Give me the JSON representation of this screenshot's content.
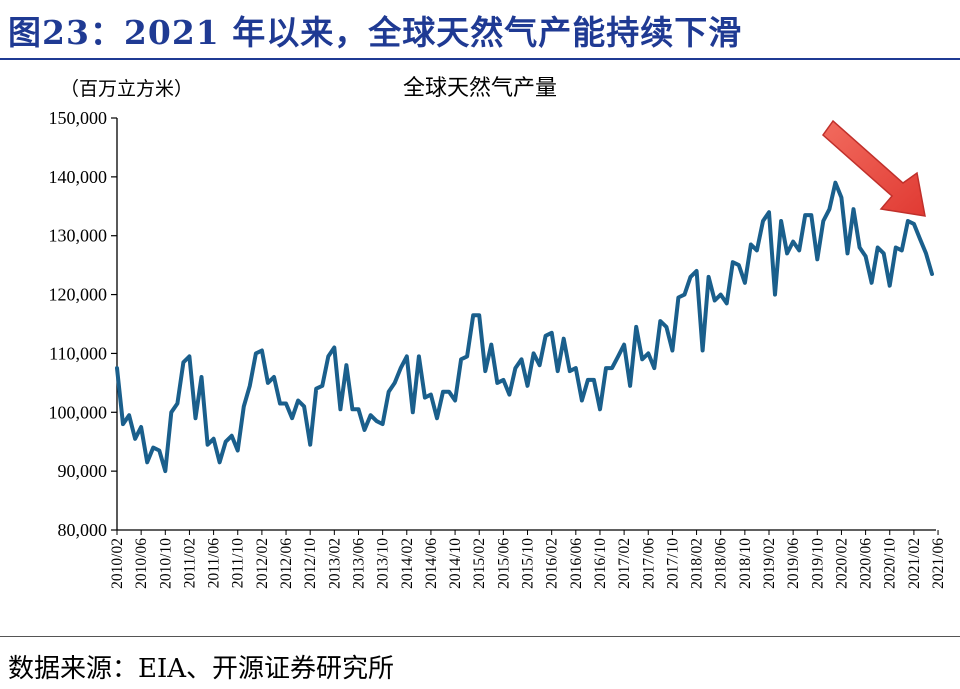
{
  "figure_title": "图23：2021 年以来，全球天然气产能持续下滑",
  "source_text": "数据来源：EIA、开源证券研究所",
  "chart_data": {
    "type": "line",
    "title": "全球天然气产量",
    "unit_label": "（百万立方米）",
    "ylim": [
      80000,
      150000
    ],
    "yticks": [
      "80,000",
      "90,000",
      "100,000",
      "110,000",
      "120,000",
      "130,000",
      "140,000",
      "150,000"
    ],
    "xtick_labels": [
      "2010/02",
      "2010/06",
      "2010/10",
      "2011/02",
      "2011/06",
      "2011/10",
      "2012/02",
      "2012/06",
      "2012/10",
      "2013/02",
      "2013/06",
      "2013/10",
      "2014/02",
      "2014/06",
      "2014/10",
      "2015/02",
      "2015/06",
      "2015/10",
      "2016/02",
      "2016/06",
      "2016/10",
      "2017/02",
      "2017/06",
      "2017/10",
      "2018/02",
      "2018/06",
      "2018/10",
      "2019/02",
      "2019/06",
      "2019/10",
      "2020/02",
      "2020/06",
      "2020/10",
      "2021/02",
      "2021/06"
    ],
    "start_month": "2010/02",
    "line_color": "#1a5f8c",
    "arrow_color": "#e8413c",
    "grid": false,
    "series": [
      {
        "values": [
          107500,
          98000,
          99500,
          95500,
          97500,
          91500,
          94000,
          93500,
          90000,
          100000,
          101500,
          108500,
          109500,
          99000,
          106000,
          94500,
          95500,
          91500,
          95000,
          96000,
          93500,
          101000,
          104500,
          110000,
          110500,
          105000,
          106000,
          101500,
          101500,
          99000,
          102000,
          101000,
          94500,
          104000,
          104500,
          109500,
          111000,
          100500,
          108000,
          100500,
          100500,
          97000,
          99500,
          98500,
          98000,
          103500,
          105000,
          107500,
          109500,
          100000,
          109500,
          102500,
          103000,
          99000,
          103500,
          103500,
          102000,
          109000,
          109500,
          116500,
          116500,
          107000,
          111500,
          105000,
          105500,
          103000,
          107500,
          109000,
          104500,
          110000,
          108000,
          113000,
          113500,
          107000,
          112500,
          107000,
          107500,
          102000,
          105500,
          105500,
          100500,
          107500,
          107500,
          109500,
          111500,
          104500,
          114500,
          109000,
          110000,
          107500,
          115500,
          114500,
          110500,
          119500,
          120000,
          123000,
          124000,
          110500,
          123000,
          119000,
          120000,
          118500,
          125500,
          125000,
          122000,
          128500,
          127500,
          132500,
          134000,
          120000,
          132500,
          127000,
          129000,
          127500,
          133500,
          133500,
          126000,
          132500,
          134500,
          139000,
          136500,
          127000,
          134500,
          128000,
          126500,
          122000,
          128000,
          127000,
          121500,
          128000,
          127500,
          132500,
          132000,
          129500,
          127000,
          123500
        ]
      }
    ]
  }
}
